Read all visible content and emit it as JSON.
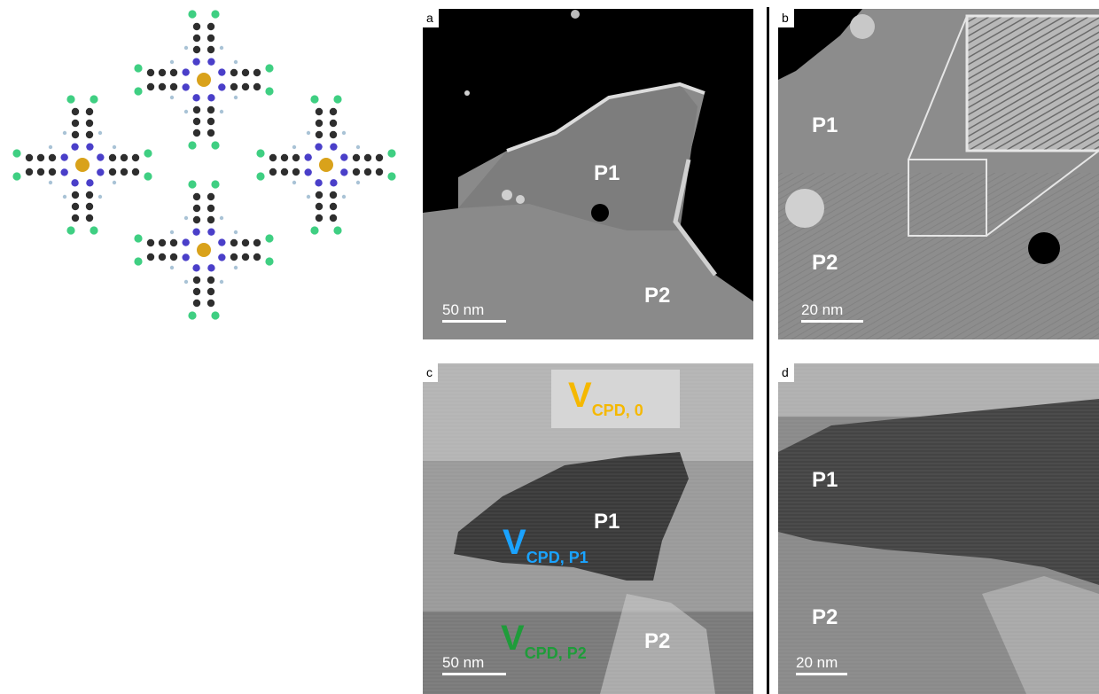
{
  "molecule_figure": {
    "molecules": 4,
    "atom_colors": {
      "carbon": "#2e2e2e",
      "nitrogen": "#4a3fc9",
      "metal": "#d9a21b",
      "chlorine": "#3fcf82",
      "hydrogen": "#a9c3d6"
    }
  },
  "panels": {
    "a": {
      "letter": "a",
      "labels": [
        "P1",
        "P2"
      ],
      "scale_bar": "50 nm"
    },
    "b": {
      "letter": "b",
      "labels": [
        "P1",
        "P2"
      ],
      "scale_bar": "20 nm"
    },
    "c": {
      "letter": "c",
      "labels": [
        "P1",
        "P2"
      ],
      "scale_bar": "50 nm",
      "vcpd0": {
        "main": "V",
        "sub": "CPD, 0",
        "color": "#f5b800"
      },
      "vcpdP1": {
        "main": "V",
        "sub": "CPD, P1",
        "color": "#1aa3ff"
      },
      "vcpdP2": {
        "main": "V",
        "sub": "CPD, P2",
        "color": "#1f9c3a"
      }
    },
    "d": {
      "letter": "d",
      "labels": [
        "P1",
        "P2"
      ],
      "scale_bar": "20 nm"
    }
  }
}
